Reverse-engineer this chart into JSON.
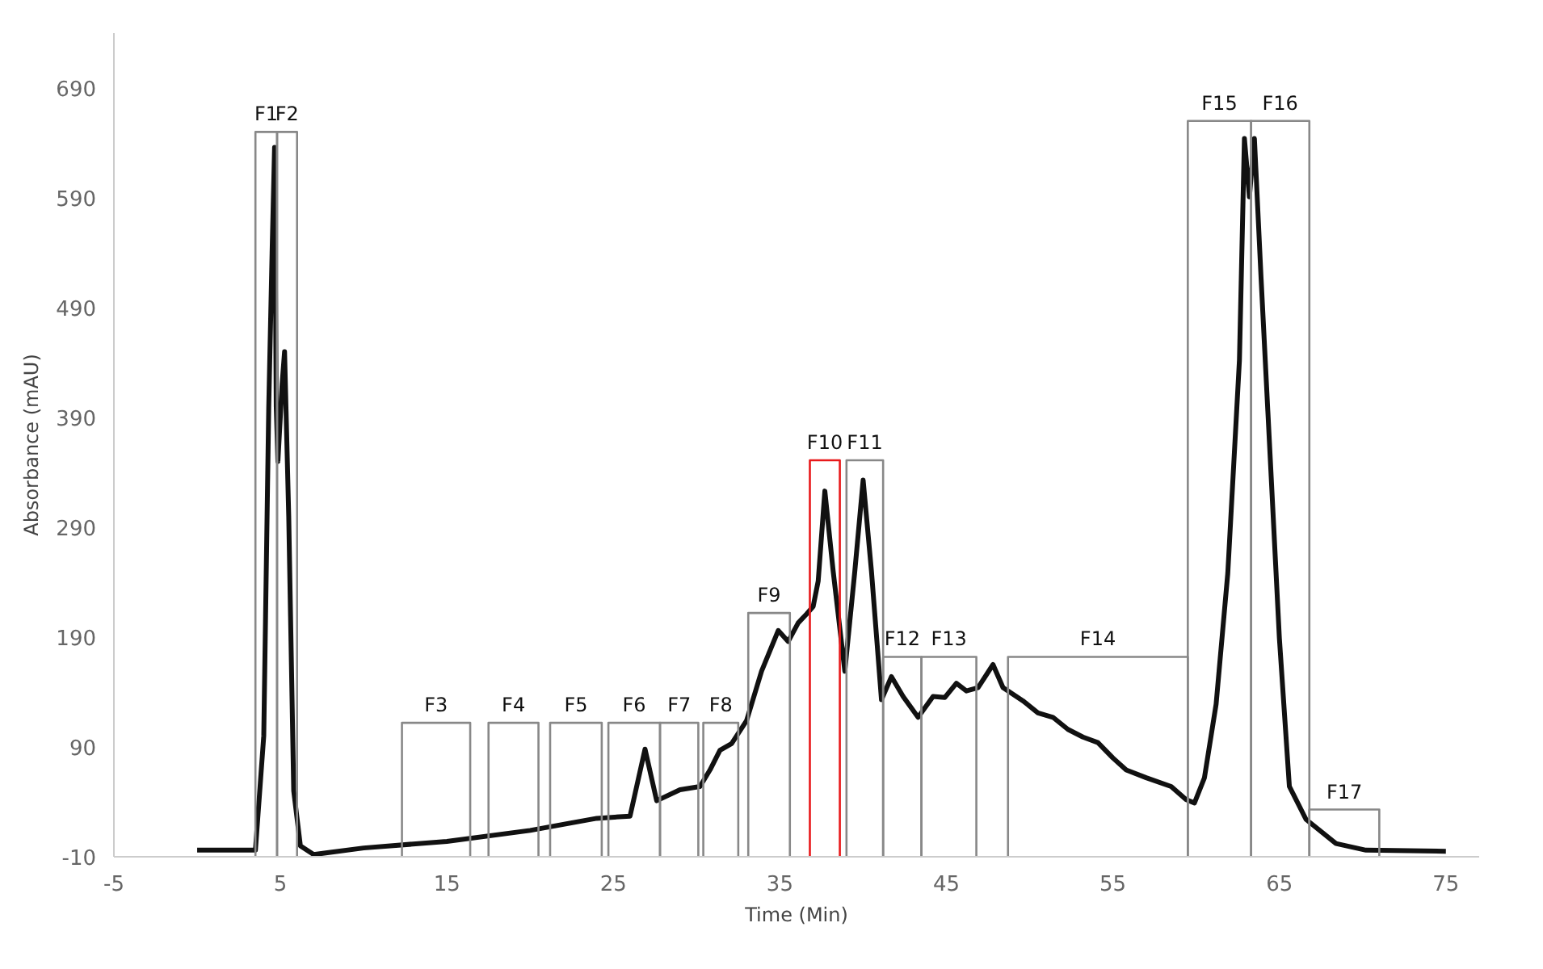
{
  "chart_data": {
    "type": "line",
    "xlabel": "Time (Min)",
    "ylabel": "Absorbance (mAU)",
    "xlim": [
      -5,
      77
    ],
    "ylim": [
      -10,
      740
    ],
    "xticks": [
      -5,
      5,
      15,
      25,
      35,
      45,
      55,
      65,
      75
    ],
    "yticks": [
      -10,
      90,
      190,
      290,
      390,
      490,
      590,
      690
    ],
    "grid": false,
    "legend": false,
    "series": [
      {
        "color": "#111111",
        "x": [
          0,
          2,
          3.5,
          4.0,
          4.3,
          4.5,
          4.65,
          4.75,
          4.85,
          5.1,
          5.25,
          5.5,
          5.8,
          6.2,
          7,
          8,
          10,
          15,
          20,
          24,
          26,
          26.9,
          27.6,
          29,
          30.2,
          30.8,
          31.4,
          32.1,
          33,
          33.9,
          34.9,
          35.5,
          36.1,
          36.6,
          37,
          37.3,
          37.7,
          38.2,
          38.9,
          39.5,
          40,
          40.5,
          41.1,
          41.7,
          42.4,
          43.3,
          44.2,
          44.9,
          45.6,
          46.2,
          46.9,
          47.8,
          48.4,
          49.6,
          50.5,
          51.4,
          52.3,
          53.2,
          54.1,
          55,
          55.8,
          57,
          58.5,
          59.4,
          59.9,
          60.5,
          61.2,
          61.9,
          62.6,
          62.9,
          63.2,
          63.5,
          63.9,
          64.4,
          65,
          65.6,
          66.6,
          68.4,
          70.2,
          75
        ],
        "values": [
          -4,
          -4,
          -4,
          100,
          400,
          540,
          636,
          400,
          350,
          420,
          450,
          300,
          50,
          0,
          -8,
          -6,
          -2,
          4,
          14,
          25,
          27,
          88,
          41,
          51,
          54,
          69,
          87,
          93,
          114,
          159,
          196,
          186,
          203,
          211,
          218,
          241,
          323,
          250,
          159,
          250,
          333,
          250,
          133,
          154,
          136,
          117,
          136,
          135,
          148,
          141,
          144,
          165,
          144,
          132,
          121,
          117,
          106,
          99,
          94,
          80,
          69,
          62,
          54,
          42,
          39,
          62,
          129,
          248,
          442,
          644,
          591,
          644,
          517,
          368,
          189,
          54,
          24,
          2,
          -4,
          -5
        ]
      },
      {
        "name": "F1",
        "color": "#888888",
        "x": [
          3.5,
          3.5,
          4.8,
          4.8
        ],
        "values": [
          -10,
          650,
          650,
          -10
        ]
      },
      {
        "name": "F2",
        "color": "#888888",
        "x": [
          4.8,
          4.8,
          6.0,
          6.0
        ],
        "values": [
          -10,
          650,
          650,
          -10
        ]
      },
      {
        "name": "F3",
        "color": "#888888",
        "x": [
          12.3,
          12.3,
          16.4,
          16.4
        ],
        "values": [
          -10,
          112,
          112,
          -10
        ]
      },
      {
        "name": "F4",
        "color": "#888888",
        "x": [
          17.5,
          17.5,
          20.5,
          20.5
        ],
        "values": [
          -10,
          112,
          112,
          -10
        ]
      },
      {
        "name": "F5",
        "color": "#888888",
        "x": [
          21.2,
          21.2,
          24.3,
          24.3
        ],
        "values": [
          -10,
          112,
          112,
          -10
        ]
      },
      {
        "name": "F6",
        "color": "#888888",
        "x": [
          24.7,
          24.7,
          27.8,
          27.8
        ],
        "values": [
          -10,
          112,
          112,
          -10
        ]
      },
      {
        "name": "F7",
        "color": "#888888",
        "x": [
          27.8,
          27.8,
          30.1,
          30.1
        ],
        "values": [
          -10,
          112,
          112,
          -10
        ]
      },
      {
        "name": "F8",
        "color": "#888888",
        "x": [
          30.4,
          30.4,
          32.5,
          32.5
        ],
        "values": [
          -10,
          112,
          112,
          -10
        ]
      },
      {
        "name": "F9",
        "color": "#888888",
        "x": [
          33.1,
          33.1,
          35.6,
          35.6
        ],
        "values": [
          -10,
          212,
          212,
          -10
        ]
      },
      {
        "name": "F10",
        "color": "#e8191b",
        "x": [
          36.8,
          36.8,
          38.6,
          38.6
        ],
        "values": [
          -10,
          351,
          351,
          -10
        ]
      },
      {
        "name": "F11",
        "color": "#888888",
        "x": [
          39.0,
          39.0,
          41.2,
          41.2
        ],
        "values": [
          -10,
          351,
          351,
          -10
        ]
      },
      {
        "name": "F12",
        "color": "#888888",
        "x": [
          41.2,
          41.2,
          43.5,
          43.5
        ],
        "values": [
          -10,
          172,
          172,
          -10
        ]
      },
      {
        "name": "F13",
        "color": "#888888",
        "x": [
          43.5,
          43.5,
          46.8,
          46.8
        ],
        "values": [
          -10,
          172,
          172,
          -10
        ]
      },
      {
        "name": "F14",
        "color": "#888888",
        "x": [
          48.7,
          48.7,
          59.5,
          59.5
        ],
        "values": [
          -10,
          172,
          172,
          -10
        ]
      },
      {
        "name": "F15",
        "color": "#888888",
        "x": [
          59.5,
          59.5,
          63.3,
          63.3
        ],
        "values": [
          -10,
          660,
          660,
          -10
        ]
      },
      {
        "name": "F16",
        "color": "#888888",
        "x": [
          63.3,
          63.3,
          66.8,
          66.8
        ],
        "values": [
          -10,
          660,
          660,
          -10
        ]
      },
      {
        "name": "F17",
        "color": "#888888",
        "x": [
          66.8,
          66.8,
          71.0,
          71.0
        ],
        "values": [
          -10,
          33,
          33,
          -10
        ]
      }
    ]
  }
}
